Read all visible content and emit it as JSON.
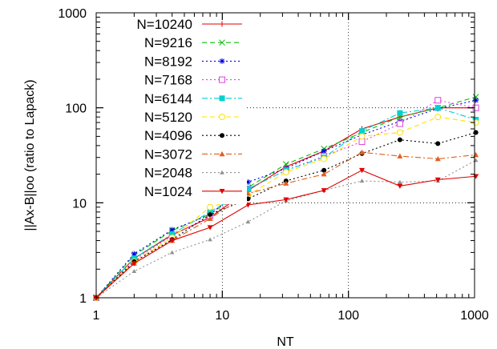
{
  "chart_data": {
    "type": "line",
    "title": "",
    "xlabel": "NT",
    "ylabel": "||Ax-B||oo (ratio to Lapack)",
    "x_scale": "log",
    "y_scale": "log",
    "xlim": [
      1,
      1000
    ],
    "ylim": [
      1,
      1000
    ],
    "x_ticks": [
      "1",
      "10",
      "100",
      "1000"
    ],
    "y_ticks": [
      "1",
      "10",
      "100",
      "1000"
    ],
    "grid": "major dotted",
    "legend_position": "top-left",
    "x": [
      1,
      2,
      4,
      8,
      16,
      32,
      64,
      128,
      256,
      512,
      1024
    ],
    "series": [
      {
        "name": "N=10240",
        "color": "#e00000",
        "dash": "solid",
        "marker": "plus",
        "values": [
          1,
          2.6,
          4.6,
          7.0,
          13.5,
          24,
          35,
          60,
          80,
          100,
          100
        ]
      },
      {
        "name": "N=9216",
        "color": "#00c000",
        "dash": "dashed",
        "marker": "x",
        "values": [
          1,
          2.8,
          5.1,
          7.6,
          14.5,
          25.5,
          37,
          55,
          80,
          100,
          130
        ]
      },
      {
        "name": "N=8192",
        "color": "#0000e0",
        "dash": "dotted",
        "marker": "star",
        "values": [
          1,
          2.9,
          5.2,
          7.5,
          16.5,
          23,
          35,
          52,
          72,
          98,
          120
        ]
      },
      {
        "name": "N=7168",
        "color": "#e040e0",
        "dash": "dotted",
        "marker": "open-square",
        "values": [
          1,
          2.5,
          4.5,
          7.3,
          14,
          22,
          31,
          44,
          68,
          120,
          100
        ]
      },
      {
        "name": "N=6144",
        "color": "#00d0d0",
        "dash": "dashdot",
        "marker": "filled-square",
        "values": [
          1,
          2.6,
          4.7,
          8.0,
          14,
          22,
          30,
          57,
          88,
          100,
          75
        ]
      },
      {
        "name": "N=5120",
        "color": "#ffe000",
        "dash": "dashed",
        "marker": "open-circle",
        "values": [
          1,
          2.4,
          4.3,
          9.0,
          12,
          21,
          29,
          50,
          55,
          80,
          70
        ]
      },
      {
        "name": "N=4096",
        "color": "#000000",
        "dash": "dotted",
        "marker": "filled-circle",
        "values": [
          1,
          2.4,
          4.1,
          7.5,
          11,
          17,
          22,
          33,
          46,
          42,
          55
        ]
      },
      {
        "name": "N=3072",
        "color": "#e06020",
        "dash": "dashdot",
        "marker": "triangle",
        "values": [
          1,
          2.3,
          4.0,
          6.8,
          12.5,
          16,
          20,
          34,
          31,
          29,
          32
        ]
      },
      {
        "name": "N=2048",
        "color": "#909090",
        "dash": "dotted",
        "marker": "filled-triangle",
        "values": [
          1,
          1.9,
          3.0,
          4.1,
          6.3,
          10.5,
          13.5,
          17,
          16.5,
          17,
          28
        ]
      },
      {
        "name": "N=1024",
        "color": "#e00000",
        "dash": "solid",
        "marker": "inverted-triangle",
        "values": [
          1,
          2.3,
          4.0,
          5.5,
          9.5,
          10.8,
          13.5,
          22,
          15,
          17.5,
          19
        ]
      }
    ]
  }
}
